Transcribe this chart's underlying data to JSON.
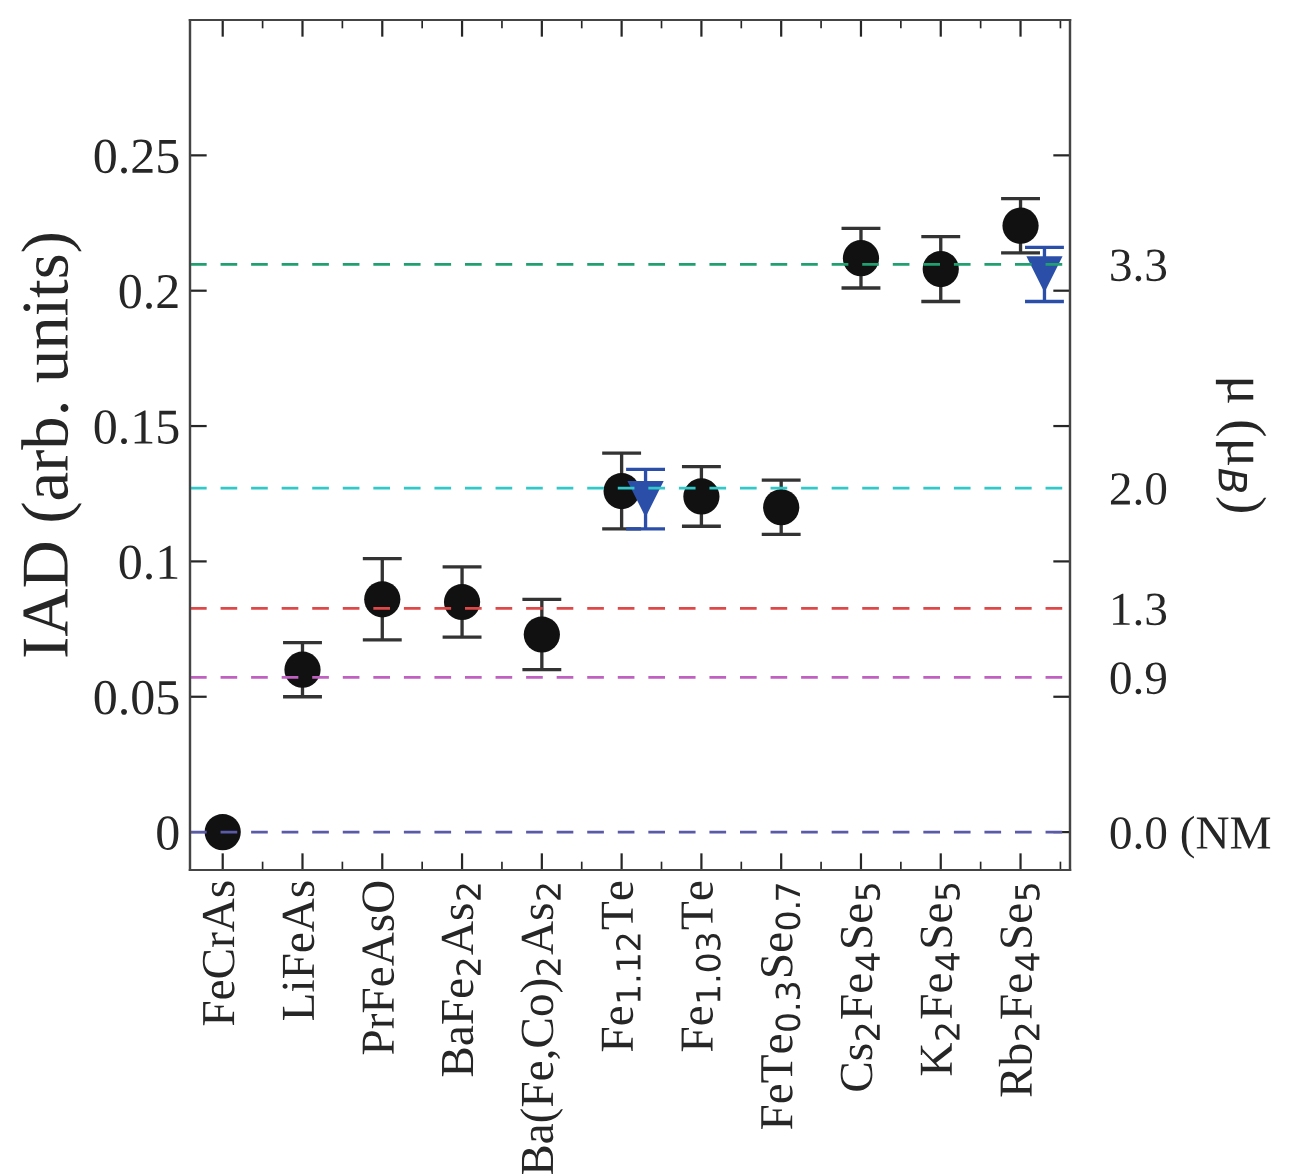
{
  "chart_data": {
    "type": "scatter",
    "ylabel": "IAD (arb. units)",
    "y2label": "μ (μ$_{B}$)",
    "categories": [
      "FeCrAs",
      "LiFeAs",
      "PrFeAsO",
      "BaFe$_{2}$As$_{2}$",
      "Ba(Fe,Co)$_{2}$As$_{2}$",
      "Fe$_{1.12}$Te",
      "Fe$_{1.03}$Te",
      "FeTe$_{0.3}$Se$_{0.7}$",
      "Cs$_{2}$Fe$_{4}$Se$_{5}$",
      "K$_{2}$Fe$_{4}$Se$_{5}$",
      "Rb$_{2}$Fe$_{4}$Se$_{5}$"
    ],
    "series": [
      {
        "color": "#111111",
        "marker": "circle",
        "values": [
          0,
          0.06,
          0.086,
          0.085,
          0.073,
          0.126,
          0.124,
          0.12,
          0.212,
          0.208,
          0.224
        ],
        "errors": [
          null,
          0.01,
          0.015,
          0.013,
          0.013,
          0.014,
          0.011,
          0.01,
          0.011,
          0.012,
          0.01
        ]
      },
      {
        "color": "#2b4fa8",
        "marker": "triangle",
        "values": [
          null,
          null,
          null,
          null,
          null,
          0.123,
          null,
          null,
          null,
          null,
          0.206
        ],
        "errors": [
          null,
          null,
          null,
          null,
          null,
          0.011,
          null,
          null,
          null,
          null,
          0.01
        ]
      }
    ],
    "ylim": [
      -0.014,
      0.3
    ],
    "yticks": [
      0,
      0.05,
      0.1,
      0.15,
      0.2,
      0.25
    ],
    "grid": false,
    "legend": false,
    "y2lim": [
      -0.22,
      4.72
    ],
    "y2ticks": [
      {
        "value": 0,
        "label": "0.0 (NM"
      },
      0.9,
      1.3,
      {
        "value": 2.0,
        "label": "2.0"
      },
      3.3
    ],
    "ref_lines": [
      {
        "axis": "y2",
        "value": 0,
        "color": "#5a5aa8",
        "line_style": "dashed"
      },
      {
        "axis": "y2",
        "value": 0.9,
        "color": "#c060c0",
        "line_style": "dashed"
      },
      {
        "axis": "y2",
        "value": 1.3,
        "color": "#e04848",
        "line_style": "dashed"
      },
      {
        "axis": "y2",
        "value": 2.0,
        "color": "#30c8c8",
        "line_style": "dashed"
      },
      {
        "axis": "y2",
        "value": 3.3,
        "color": "#20a070",
        "line_style": "dashed"
      }
    ]
  }
}
